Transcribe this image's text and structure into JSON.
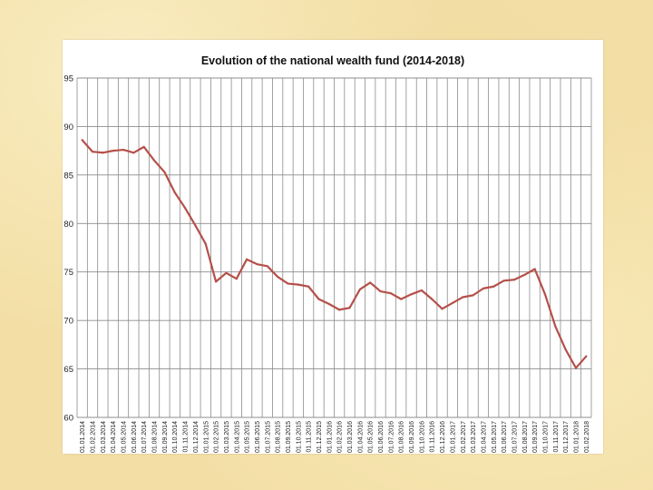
{
  "chart_data": {
    "type": "line",
    "title": "Evolution of the national wealth fund (2014-2018)",
    "xlabel": "",
    "ylabel": "",
    "ylim": [
      60,
      95
    ],
    "yticks": [
      60,
      65,
      70,
      75,
      80,
      85,
      90,
      95
    ],
    "grid": true,
    "legend": "none",
    "colors": {
      "line": "#b5504a",
      "grid": "#8c8c8c",
      "plot_bg": "#ffffff",
      "page_bg": "#f3dfa6"
    },
    "categories": [
      "01.01.2014",
      "01.02.2014",
      "01.03.2014",
      "01.04.2014",
      "01.05.2014",
      "01.06.2014",
      "01.07.2014",
      "01.08.2014",
      "01.09.2014",
      "01.10.2014",
      "01.11.2014",
      "01.12.2014",
      "01.01.2015",
      "01.02.2015",
      "01.03.2015",
      "01.04.2015",
      "01.05.2015",
      "01.06.2015",
      "01.07.2015",
      "01.08.2015",
      "01.09.2015",
      "01.10.2015",
      "01.11.2015",
      "01.12.2015",
      "01.01.2016",
      "01.02.2016",
      "01.03.2016",
      "01.04.2016",
      "01.05.2016",
      "01.06.2016",
      "01.07.2016",
      "01.08.2016",
      "01.09.2016",
      "01.10.2016",
      "01.11.2016",
      "01.12.2016",
      "01.01.2017",
      "01.02.2017",
      "01.03.2017",
      "01.04.2017",
      "01.05.2017",
      "01.06.2017",
      "01.07.2017",
      "01.08.2017",
      "01.09.2017",
      "01.10.2017",
      "01.11.2017",
      "01.12.2017",
      "01.01.2018",
      "01.02.2018"
    ],
    "series": [
      {
        "values": [
          88.6,
          87.4,
          87.3,
          87.5,
          87.6,
          87.3,
          87.9,
          86.5,
          85.3,
          83.2,
          81.6,
          79.8,
          77.9,
          74.0,
          74.9,
          74.3,
          76.3,
          75.8,
          75.6,
          74.5,
          73.8,
          73.7,
          73.5,
          72.2,
          71.7,
          71.1,
          71.3,
          73.2,
          73.9,
          73.0,
          72.8,
          72.2,
          72.7,
          73.1,
          72.2,
          71.2,
          71.8,
          72.4,
          72.6,
          73.3,
          73.5,
          74.1,
          74.2,
          74.7,
          75.3,
          72.7,
          69.4,
          67.0,
          65.1,
          66.3
        ]
      }
    ]
  }
}
